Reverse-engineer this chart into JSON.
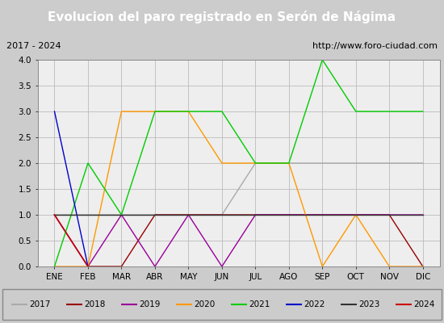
{
  "title": "Evolucion del paro registrado en Serón de Nágima",
  "subtitle_left": "2017 - 2024",
  "subtitle_right": "http://www.foro-ciudad.com",
  "xlabel_months": [
    "ENE",
    "FEB",
    "MAR",
    "ABR",
    "MAY",
    "JUN",
    "JUL",
    "AGO",
    "SEP",
    "OCT",
    "NOV",
    "DIC"
  ],
  "ylim": [
    0.0,
    4.0
  ],
  "yticks": [
    0.0,
    0.5,
    1.0,
    1.5,
    2.0,
    2.5,
    3.0,
    3.5,
    4.0
  ],
  "series": {
    "2017": {
      "color": "#aaaaaa",
      "values": [
        1,
        1,
        1,
        1,
        1,
        1,
        2,
        2,
        2,
        2,
        2,
        2
      ]
    },
    "2018": {
      "color": "#990000",
      "values": [
        1,
        0,
        0,
        1,
        1,
        1,
        1,
        1,
        1,
        1,
        1,
        0
      ]
    },
    "2019": {
      "color": "#990099",
      "values": [
        1,
        0,
        1,
        0,
        1,
        0,
        1,
        1,
        1,
        1,
        1,
        1
      ]
    },
    "2020": {
      "color": "#ff9900",
      "values": [
        0,
        0,
        3,
        3,
        3,
        2,
        2,
        2,
        0,
        1,
        0,
        0
      ]
    },
    "2021": {
      "color": "#00cc00",
      "values": [
        0,
        2,
        1,
        3,
        3,
        3,
        2,
        2,
        4,
        3,
        3,
        3
      ]
    },
    "2022": {
      "color": "#0000cc",
      "values": [
        3,
        0,
        null,
        null,
        null,
        null,
        null,
        null,
        null,
        null,
        null,
        null
      ]
    },
    "2023": {
      "color": "#333333",
      "values": [
        1,
        1,
        1,
        1,
        1,
        1,
        1,
        1,
        1,
        1,
        1,
        1
      ]
    },
    "2024": {
      "color": "#cc0000",
      "values": [
        1,
        0,
        null,
        null,
        null,
        null,
        null,
        null,
        null,
        null,
        null,
        null
      ]
    }
  },
  "title_bg_color": "#5577cc",
  "title_text_color": "#ffffff",
  "header_bg_color": "#cccccc",
  "header_border_color": "#888888",
  "plot_bg_color": "#eeeeee",
  "fig_bg_color": "#cccccc",
  "grid_color": "#bbbbbb",
  "title_fontsize": 11,
  "header_fontsize": 8,
  "tick_fontsize": 7.5,
  "legend_fontsize": 7.5
}
